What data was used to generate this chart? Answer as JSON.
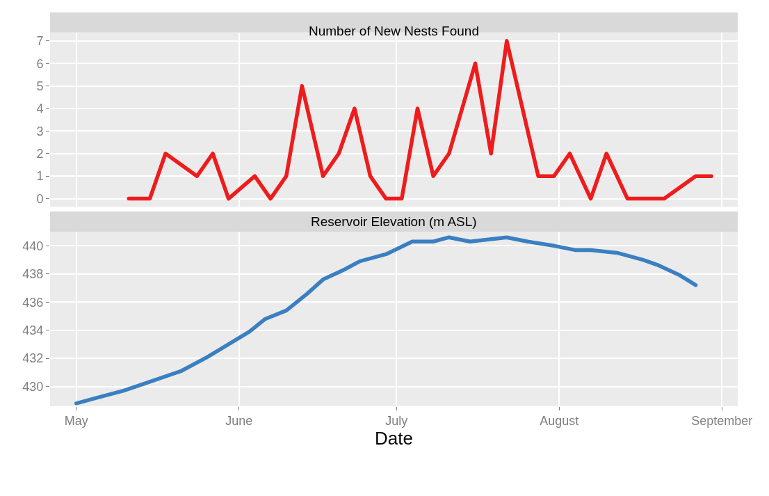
{
  "chart_data": [
    {
      "type": "line",
      "title": "Number of New Nests Found",
      "x": [
        "--05-11",
        "--05-15",
        "--05-18",
        "--05-24",
        "--05-27",
        "--05-30",
        "--06-04",
        "--06-07",
        "--06-10",
        "--06-13",
        "--06-17",
        "--06-20",
        "--06-23",
        "--06-26",
        "--06-29",
        "--07-02",
        "--07-05",
        "--07-08",
        "--07-11",
        "--07-16",
        "--07-19",
        "--07-22",
        "--07-28",
        "--07-31",
        "--08-03",
        "--08-07",
        "--08-10",
        "--08-14",
        "--08-21",
        "--08-27",
        "--08-30"
      ],
      "series": [
        {
          "color": "#ee1c1c",
          "values": [
            0,
            0,
            2,
            1,
            2,
            0,
            1,
            0,
            1,
            5,
            1,
            2,
            4,
            1,
            0,
            0,
            4,
            1,
            2,
            6,
            2,
            7,
            1,
            1,
            2,
            0,
            2,
            0,
            0,
            1,
            1
          ]
        }
      ],
      "xlim": [
        "--04-26",
        "--09-04"
      ],
      "ylim": [
        -0.37,
        7.37
      ],
      "yticks": [
        0,
        1,
        2,
        3,
        4,
        5,
        6,
        7
      ],
      "xticks": [
        {
          "value": "--05-01",
          "label": "May"
        },
        {
          "value": "--06-01",
          "label": "June"
        },
        {
          "value": "--07-01",
          "label": "July"
        },
        {
          "value": "--08-01",
          "label": "August"
        },
        {
          "value": "--09-01",
          "label": "September"
        }
      ],
      "tick_labels": "y",
      "grid": true
    },
    {
      "type": "line",
      "title": "Reservoir Elevation (m ASL)",
      "xlabel": "Date",
      "x": [
        "--05-01",
        "--05-05",
        "--05-10",
        "--05-14",
        "--05-21",
        "--05-26",
        "--05-30",
        "--06-03",
        "--06-06",
        "--06-10",
        "--06-14",
        "--06-17",
        "--06-21",
        "--06-24",
        "--06-29",
        "--07-04",
        "--07-08",
        "--07-11",
        "--07-15",
        "--07-22",
        "--07-26",
        "--07-31",
        "--08-04",
        "--08-07",
        "--08-12",
        "--08-17",
        "--08-20",
        "--08-24",
        "--08-27"
      ],
      "series": [
        {
          "color": "#3a7fc1",
          "values": [
            428.8,
            429.2,
            429.7,
            430.2,
            431.1,
            432.1,
            433.0,
            433.9,
            434.8,
            435.4,
            436.6,
            437.6,
            438.3,
            438.9,
            439.4,
            440.3,
            440.3,
            440.6,
            440.3,
            440.6,
            440.3,
            440.0,
            439.7,
            439.7,
            439.5,
            439.0,
            438.6,
            437.9,
            437.2
          ]
        }
      ],
      "xlim": [
        "--04-26",
        "--09-04"
      ],
      "ylim": [
        428.6,
        441.0
      ],
      "yticks": [
        430,
        432,
        434,
        436,
        438,
        440
      ],
      "xticks": [
        {
          "value": "--05-01",
          "label": "May"
        },
        {
          "value": "--06-01",
          "label": "June"
        },
        {
          "value": "--07-01",
          "label": "July"
        },
        {
          "value": "--08-01",
          "label": "August"
        },
        {
          "value": "--09-01",
          "label": "September"
        }
      ],
      "grid": true
    }
  ]
}
